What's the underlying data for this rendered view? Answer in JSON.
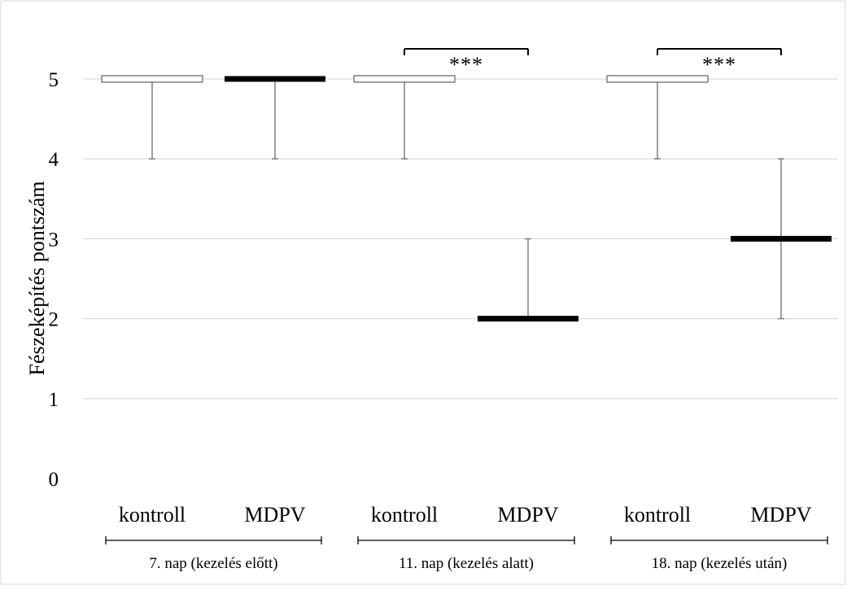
{
  "chart_data": {
    "type": "box",
    "ylabel": "Fészeképítés pontszám",
    "ylim": [
      0,
      5
    ],
    "yticks": [
      "0",
      "1",
      "2",
      "3",
      "4",
      "5"
    ],
    "grid": true,
    "categories": [
      "kontroll",
      "MDPV",
      "kontroll",
      "MDPV",
      "kontroll",
      "MDPV"
    ],
    "groups": [
      {
        "label": "7. nap (kezelés előtt)",
        "members": [
          0,
          1
        ]
      },
      {
        "label": "11. nap (kezelés alatt)",
        "members": [
          2,
          3
        ]
      },
      {
        "label": "18. nap (kezelés után)",
        "members": [
          4,
          5
        ]
      }
    ],
    "boxes": [
      {
        "category": "kontroll",
        "median": 5,
        "q1": 5,
        "q3": 5,
        "min": 4,
        "max": 5,
        "fill": "#ffffff"
      },
      {
        "category": "MDPV",
        "median": 5,
        "q1": 5,
        "q3": 5,
        "min": 4,
        "max": 5,
        "fill": "#000000"
      },
      {
        "category": "kontroll",
        "median": 5,
        "q1": 5,
        "q3": 5,
        "min": 4,
        "max": 5,
        "fill": "#ffffff"
      },
      {
        "category": "MDPV",
        "median": 2,
        "q1": 2,
        "q3": 2,
        "min": 2,
        "max": 3,
        "fill": "#000000"
      },
      {
        "category": "kontroll",
        "median": 5,
        "q1": 5,
        "q3": 5,
        "min": 4,
        "max": 5,
        "fill": "#ffffff"
      },
      {
        "category": "MDPV",
        "median": 3,
        "q1": 3,
        "q3": 3,
        "min": 2,
        "max": 4,
        "fill": "#000000"
      }
    ],
    "significance": [
      {
        "between": [
          2,
          3
        ],
        "label": "***"
      },
      {
        "between": [
          4,
          5
        ],
        "label": "***"
      }
    ]
  }
}
